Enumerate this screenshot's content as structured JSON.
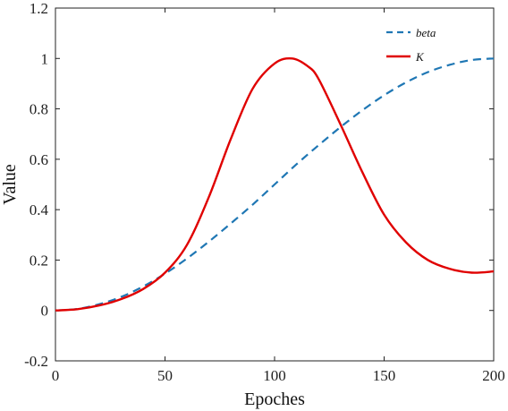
{
  "chart_data": {
    "type": "line",
    "title": "",
    "xlabel": "Epoches",
    "ylabel": "Value",
    "xlim": [
      0,
      200
    ],
    "ylim": [
      -0.2,
      1.2
    ],
    "x_ticks": [
      0,
      50,
      100,
      150,
      200
    ],
    "x_tick_labels": [
      "0",
      "50",
      "100",
      "150",
      "200"
    ],
    "y_ticks": [
      -0.2,
      0,
      0.2,
      0.4,
      0.6,
      0.8,
      1,
      1.2
    ],
    "y_tick_labels": [
      "-0.2",
      "0",
      "0.2",
      "0.4",
      "0.6",
      "0.8",
      "1",
      "1.2"
    ],
    "grid": false,
    "legend_position": "top-right",
    "series": [
      {
        "name": "beta",
        "color": "#1f77b4",
        "style": "dashed",
        "x": [
          0,
          10,
          20,
          30,
          40,
          50,
          60,
          70,
          80,
          90,
          100,
          110,
          120,
          130,
          140,
          150,
          160,
          170,
          180,
          190,
          200
        ],
        "values": [
          0.0,
          0.006,
          0.025,
          0.054,
          0.095,
          0.146,
          0.206,
          0.273,
          0.345,
          0.42,
          0.5,
          0.58,
          0.655,
          0.727,
          0.794,
          0.854,
          0.905,
          0.946,
          0.975,
          0.994,
          1.0
        ]
      },
      {
        "name": "K",
        "color": "#e00000",
        "style": "solid",
        "x": [
          0,
          10,
          20,
          30,
          40,
          50,
          60,
          70,
          80,
          90,
          100,
          108,
          115,
          120,
          130,
          140,
          150,
          160,
          170,
          180,
          190,
          200
        ],
        "values": [
          0.0,
          0.005,
          0.02,
          0.045,
          0.085,
          0.15,
          0.26,
          0.45,
          0.68,
          0.88,
          0.98,
          1.0,
          0.97,
          0.92,
          0.74,
          0.55,
          0.38,
          0.27,
          0.2,
          0.165,
          0.15,
          0.155
        ]
      }
    ]
  }
}
